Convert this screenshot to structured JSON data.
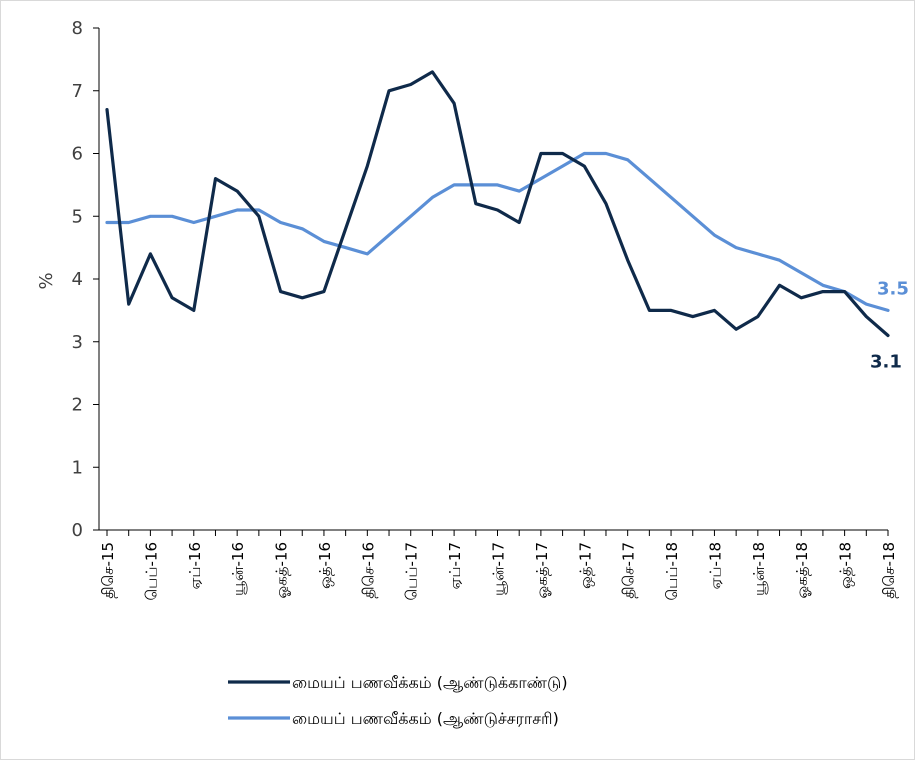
{
  "chart_data": {
    "type": "line",
    "title": "",
    "ylabel": "%",
    "xlabel": "",
    "ylim": [
      0,
      8
    ],
    "yticks": [
      0,
      1,
      2,
      3,
      4,
      5,
      6,
      7,
      8
    ],
    "grid": false,
    "legend_position": "bottom",
    "x_tick_labels": [
      "திசெ-15",
      "பெப்-16",
      "ஏப்-16",
      "யூன்-16",
      "ஓகத்-16",
      "ஒத்-16",
      "திசெ-16",
      "பெப்-17",
      "ஏப்-17",
      "யூன்-17",
      "ஓகத்-17",
      "ஒத்-17",
      "திசெ-17",
      "பெப்-18",
      "ஏப்-18",
      "யூன்-18",
      "ஓகத்-18",
      "ஒத்-18",
      "திசெ-18"
    ],
    "series": [
      {
        "name": "மையப் பணவீக்கம் (ஆண்டுக்காண்டு)",
        "color": "#0f2a4a",
        "values": [
          6.7,
          3.6,
          4.4,
          3.7,
          3.5,
          5.6,
          5.4,
          5.0,
          3.8,
          3.7,
          3.8,
          4.8,
          5.8,
          7.0,
          7.1,
          7.3,
          6.8,
          5.2,
          5.1,
          4.9,
          6.0,
          6.0,
          5.8,
          5.2,
          4.3,
          3.5,
          3.5,
          3.4,
          3.5,
          3.2,
          3.4,
          3.9,
          3.7,
          3.8,
          3.8,
          3.4,
          3.1
        ],
        "end_label": "3.1"
      },
      {
        "name": "மையப் பணவீக்கம் (ஆண்டுச்சராசரி)",
        "color": "#5b8fd6",
        "values": [
          4.9,
          4.9,
          5.0,
          5.0,
          4.9,
          5.0,
          5.1,
          5.1,
          4.9,
          4.8,
          4.6,
          4.5,
          4.4,
          4.7,
          5.0,
          5.3,
          5.5,
          5.5,
          5.5,
          5.4,
          5.6,
          5.8,
          6.0,
          6.0,
          5.9,
          5.6,
          5.3,
          5.0,
          4.7,
          4.5,
          4.4,
          4.3,
          4.1,
          3.9,
          3.8,
          3.6,
          3.5
        ],
        "end_label": "3.5"
      }
    ]
  }
}
